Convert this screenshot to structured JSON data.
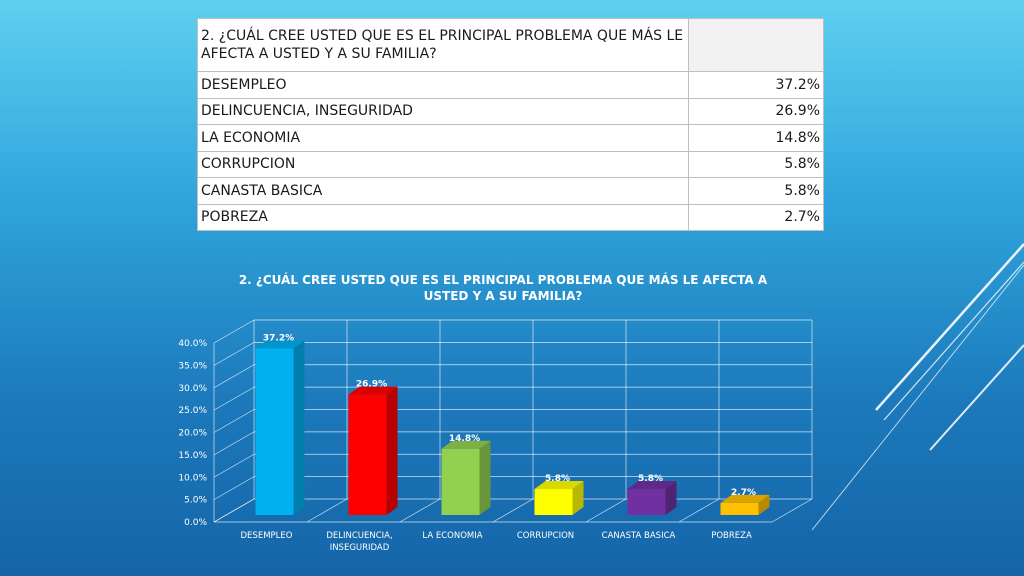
{
  "table": {
    "header": "2. ¿CUÁL CREE USTED QUE ES EL PRINCIPAL PROBLEMA QUE MÁS LE AFECTA A USTED Y A SU FAMILIA?",
    "rows": [
      {
        "label": "DESEMPLEO",
        "value": "37.2%"
      },
      {
        "label": "DELINCUENCIA, INSEGURIDAD",
        "value": "26.9%"
      },
      {
        "label": "LA ECONOMIA",
        "value": "14.8%"
      },
      {
        "label": "CORRUPCION",
        "value": "5.8%"
      },
      {
        "label": "CANASTA BASICA",
        "value": "5.8%"
      },
      {
        "label": "POBREZA",
        "value": "2.7%"
      }
    ]
  },
  "chart_data": {
    "type": "bar",
    "title": "2. ¿CUÁL CREE USTED QUE ES EL PRINCIPAL PROBLEMA QUE MÁS LE AFECTA A USTED Y A SU FAMILIA?",
    "categories": [
      "DESEMPLEO",
      "DELINCUENCIA, INSEGURIDAD",
      "LA ECONOMIA",
      "CORRUPCION",
      "CANASTA BASICA",
      "POBREZA"
    ],
    "category_lines": [
      [
        "DESEMPLEO"
      ],
      [
        "DELINCUENCIA,",
        "INSEGURIDAD"
      ],
      [
        "LA ECONOMIA"
      ],
      [
        "CORRUPCION"
      ],
      [
        "CANASTA BASICA"
      ],
      [
        "POBREZA"
      ]
    ],
    "values": [
      37.2,
      26.9,
      14.8,
      5.8,
      5.8,
      2.7
    ],
    "data_labels": [
      "37.2%",
      "26.9%",
      "14.8%",
      "5.8%",
      "5.8%",
      "2.7%"
    ],
    "colors": [
      "#00b0f0",
      "#ff0000",
      "#92d050",
      "#ffff00",
      "#7030a0",
      "#ffc000"
    ],
    "ylim": [
      0,
      40
    ],
    "yticks": [
      0,
      5,
      10,
      15,
      20,
      25,
      30,
      35,
      40
    ],
    "ytick_labels": [
      "0.0%",
      "5.0%",
      "10.0%",
      "15.0%",
      "20.0%",
      "25.0%",
      "30.0%",
      "35.0%",
      "40.0%"
    ],
    "grid": true,
    "legend": false,
    "style": "3d"
  }
}
